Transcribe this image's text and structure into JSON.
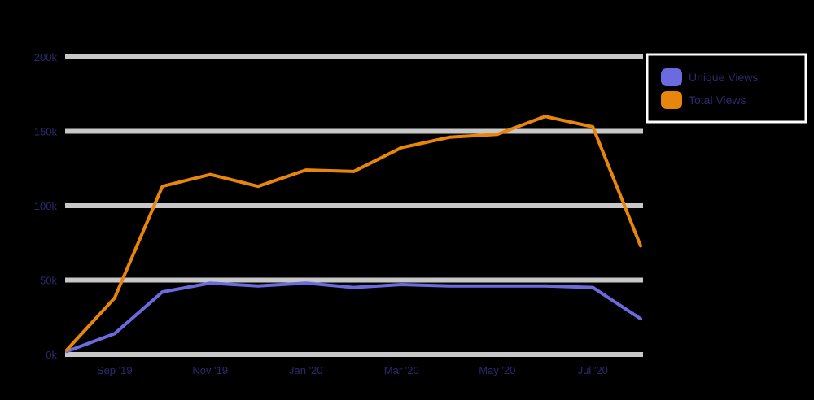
{
  "chart_data": {
    "type": "line",
    "title": "",
    "xlabel": "",
    "ylabel": "",
    "ylim": [
      0,
      200000
    ],
    "yticks": [
      0,
      50000,
      100000,
      150000,
      200000
    ],
    "ytick_labels": [
      "0k",
      "50k",
      "100k",
      "150k",
      "200k"
    ],
    "x_tick_labels": [
      "Sep '19",
      "Nov '19",
      "Jan '20",
      "Mar '20",
      "May '20",
      "Jul '20"
    ],
    "x_tick_index": [
      1,
      3,
      5,
      7,
      9,
      11
    ],
    "grid": true,
    "legend_position": "top-right",
    "series": [
      {
        "name": "Unique Views",
        "color": "#6b6bdf",
        "values": [
          2000,
          14000,
          42000,
          48000,
          46000,
          48000,
          45000,
          47000,
          46000,
          46000,
          46000,
          45000,
          24000
        ]
      },
      {
        "name": "Total Views",
        "color": "#e8850c",
        "values": [
          3000,
          38000,
          113000,
          121000,
          113000,
          124000,
          123000,
          139000,
          146000,
          148000,
          160000,
          153000,
          73000
        ]
      }
    ]
  }
}
